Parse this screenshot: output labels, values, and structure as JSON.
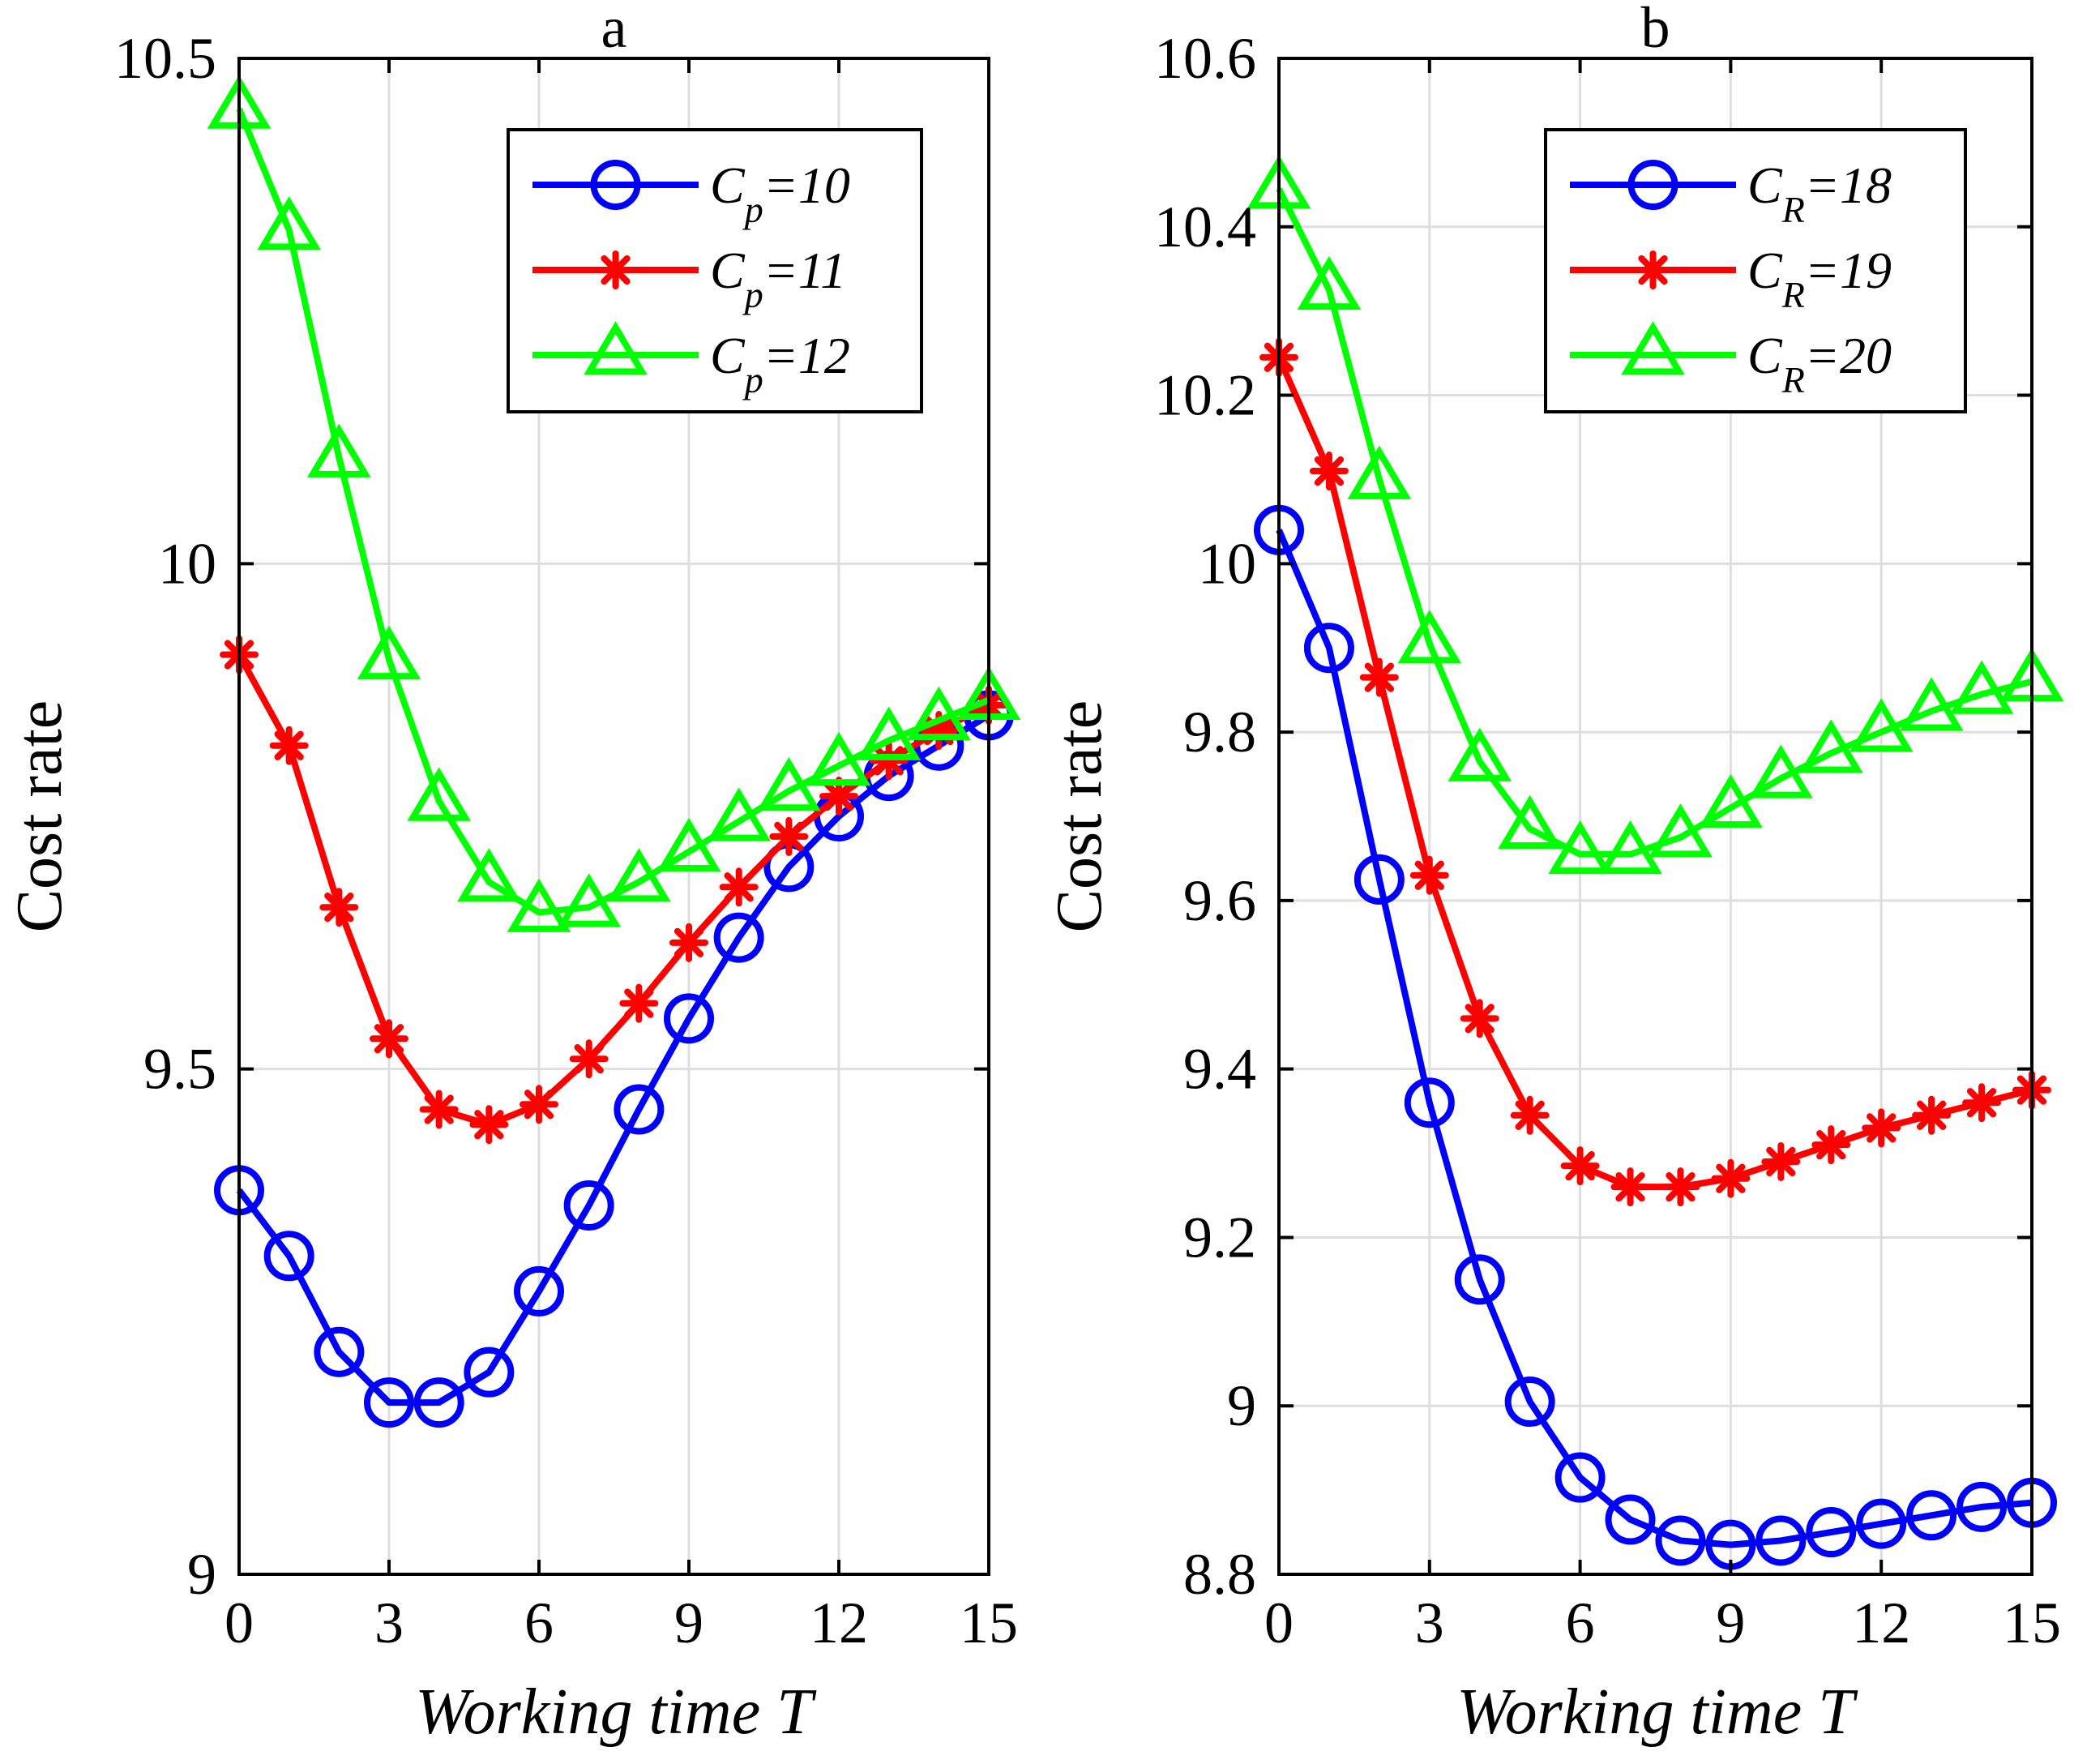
{
  "chart_data": [
    {
      "type": "line",
      "title": "a",
      "xlabel": "Working time T",
      "ylabel": "Cost rate",
      "xlim": [
        0,
        15
      ],
      "ylim": [
        9,
        10.5
      ],
      "xticks": [
        "0",
        "3",
        "6",
        "9",
        "12",
        "15"
      ],
      "yticks": [
        "9",
        "9.5",
        "10",
        "10.5"
      ],
      "grid": true,
      "legend_position": "top-right",
      "x": [
        0,
        1,
        2,
        3,
        4,
        5,
        6,
        7,
        8,
        9,
        10,
        11,
        12,
        13,
        14,
        15
      ],
      "series": [
        {
          "name_main": "C",
          "name_sub": "p",
          "name_rest": "=10",
          "color": "#0000ff",
          "marker": "circle",
          "values": [
            9.38,
            9.315,
            9.22,
            9.17,
            9.17,
            9.2,
            9.28,
            9.365,
            9.46,
            9.55,
            9.63,
            9.7,
            9.75,
            9.79,
            9.82,
            9.85
          ]
        },
        {
          "name_main": "C",
          "name_sub": "p",
          "name_rest": "=11",
          "color": "#ff0000",
          "marker": "asterisk",
          "values": [
            9.91,
            9.82,
            9.66,
            9.53,
            9.46,
            9.445,
            9.465,
            9.51,
            9.565,
            9.625,
            9.68,
            9.73,
            9.77,
            9.805,
            9.835,
            9.86
          ]
        },
        {
          "name_main": "C",
          "name_sub": "p",
          "name_rest": "=12",
          "color": "#00ff00",
          "marker": "triangle",
          "values": [
            10.45,
            10.33,
            10.105,
            9.905,
            9.765,
            9.685,
            9.655,
            9.66,
            9.685,
            9.715,
            9.745,
            9.775,
            9.8,
            9.825,
            9.845,
            9.865
          ]
        }
      ]
    },
    {
      "type": "line",
      "title": "b",
      "xlabel": "Working time T",
      "ylabel": "Cost rate",
      "xlim": [
        0,
        15
      ],
      "ylim": [
        8.8,
        10.6
      ],
      "xticks": [
        "0",
        "3",
        "6",
        "9",
        "12",
        "15"
      ],
      "yticks": [
        "8.8",
        "9",
        "9.2",
        "9.4",
        "9.6",
        "9.8",
        "10",
        "10.2",
        "10.4",
        "10.6"
      ],
      "grid": true,
      "legend_position": "top-right",
      "x": [
        0,
        1,
        2,
        3,
        4,
        5,
        6,
        7,
        8,
        9,
        10,
        11,
        12,
        13,
        14,
        15
      ],
      "series": [
        {
          "name_main": "C",
          "name_sub": "R",
          "name_rest": "=18",
          "color": "#0000ff",
          "marker": "circle",
          "values": [
            10.04,
            9.9,
            9.625,
            9.36,
            9.15,
            9.005,
            8.915,
            8.865,
            8.84,
            8.835,
            8.84,
            8.85,
            8.86,
            8.87,
            8.88,
            8.885
          ]
        },
        {
          "name_main": "C",
          "name_sub": "R",
          "name_rest": "=19",
          "color": "#ff0000",
          "marker": "asterisk",
          "values": [
            10.245,
            10.11,
            9.865,
            9.63,
            9.46,
            9.345,
            9.285,
            9.26,
            9.26,
            9.27,
            9.29,
            9.31,
            9.33,
            9.345,
            9.36,
            9.375
          ]
        },
        {
          "name_main": "C",
          "name_sub": "R",
          "name_rest": "=20",
          "color": "#00ff00",
          "marker": "triangle",
          "values": [
            10.445,
            10.325,
            10.1,
            9.905,
            9.765,
            9.685,
            9.655,
            9.655,
            9.675,
            9.71,
            9.745,
            9.775,
            9.8,
            9.825,
            9.845,
            9.86
          ]
        }
      ]
    }
  ]
}
